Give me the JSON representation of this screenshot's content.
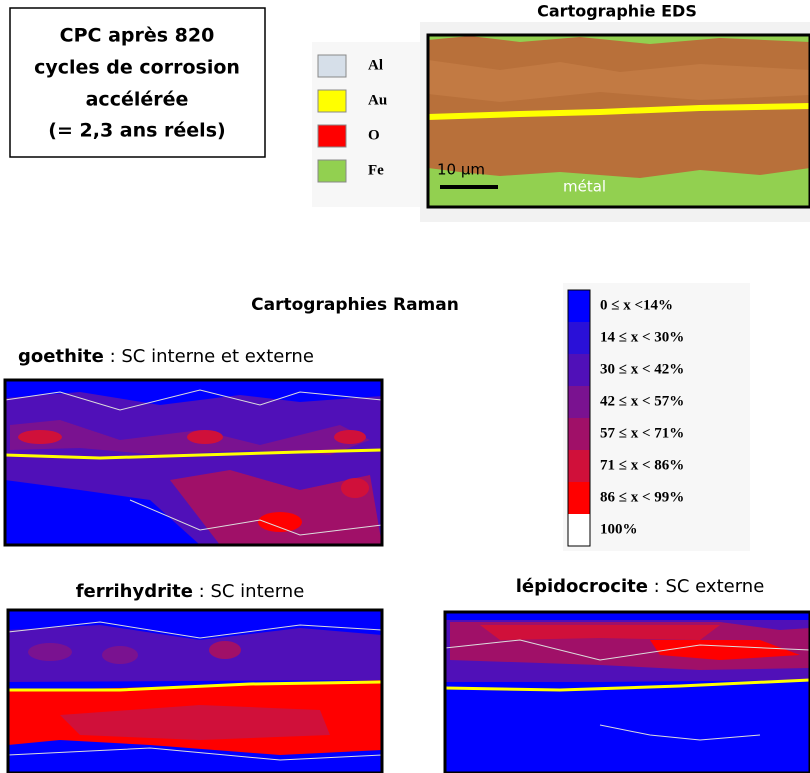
{
  "info_box": {
    "lines": [
      "CPC après 820",
      "cycles  de corrosion",
      "accélérée",
      "(= 2,3 ans réels)"
    ]
  },
  "eds": {
    "title": "Cartographie EDS",
    "legend": [
      {
        "label": "Al",
        "color": "#d6dfe9"
      },
      {
        "label": "Au",
        "color": "#ffff00"
      },
      {
        "label": "O",
        "color": "#ff0000"
      },
      {
        "label": "Fe",
        "color": "#92d050"
      }
    ],
    "scale": "10 µm",
    "metal_label": "métal"
  },
  "raman": {
    "title": "Cartographies Raman",
    "scale_legend": [
      {
        "label": "0 ≤ x <14%",
        "color": "#0000ff"
      },
      {
        "label": "14 ≤ x < 30%",
        "color": "#2a10d8"
      },
      {
        "label": "30 ≤ x < 42%",
        "color": "#5010b8"
      },
      {
        "label": "42 ≤ x < 57%",
        "color": "#7a1290"
      },
      {
        "label": "57 ≤ x < 71%",
        "color": "#a01068"
      },
      {
        "label": "71 ≤ x < 86%",
        "color": "#d0103a"
      },
      {
        "label": "86 ≤ x < 99%",
        "color": "#ff0000"
      },
      {
        "label": "100%",
        "color": "#ffffff"
      }
    ],
    "maps": [
      {
        "phase": "goethite",
        "description": " : SC interne et externe"
      },
      {
        "phase": "ferrihydrite",
        "description": " : SC interne"
      },
      {
        "phase": "lépidocrocite",
        "description": " : SC externe"
      }
    ]
  }
}
